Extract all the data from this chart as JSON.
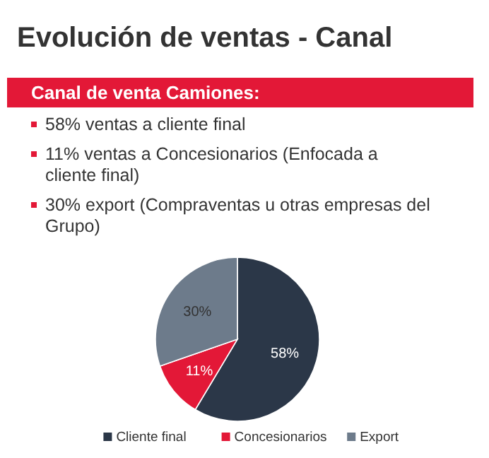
{
  "chart_data": {
    "type": "pie",
    "title": "Evolución de ventas - Canal",
    "subtitle": "Canal de venta Camiones:",
    "annotations": [
      "58% ventas a cliente final",
      "11% ventas a Concesionarios (Enfocada a cliente final)",
      "30% export (Compraventas u otras empresas del Grupo)"
    ],
    "categories": [
      "Cliente final",
      "Concesionarios",
      "Export"
    ],
    "values": [
      58,
      11,
      30
    ],
    "colors": [
      "#2b3748",
      "#e31837",
      "#6d7b8b"
    ],
    "value_labels": [
      "58%",
      "11%",
      "30%"
    ],
    "legend": "bottom"
  }
}
